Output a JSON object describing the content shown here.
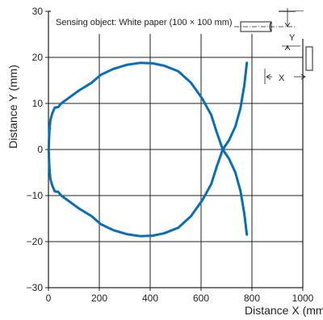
{
  "chart_data": {
    "type": "line",
    "xlabel": "Distance X (mm)",
    "ylabel": "Distance Y (mm)",
    "xlim": [
      0,
      1000
    ],
    "ylim": [
      -30,
      30
    ],
    "x_ticks": [
      0,
      200,
      400,
      600,
      800,
      1000
    ],
    "y_ticks": [
      -30,
      -20,
      -10,
      0,
      10,
      20,
      30
    ],
    "grid": true,
    "annotation": "Sensing object: White paper (100 × 100 mm)",
    "diagram_labels": {
      "y": "Y",
      "x": "X"
    },
    "colors": {
      "series": "#0a6eb4",
      "grid": "#231f20"
    },
    "series": [
      {
        "points": [
          [
            780,
            -18.5
          ],
          [
            770,
            -14
          ],
          [
            755,
            -9
          ],
          [
            735,
            -5
          ],
          [
            710,
            -2
          ],
          [
            685,
            0
          ],
          [
            660,
            4
          ],
          [
            640,
            7.5
          ],
          [
            605,
            11
          ],
          [
            560,
            14.5
          ],
          [
            510,
            17
          ],
          [
            455,
            18.2
          ],
          [
            410,
            18.7
          ],
          [
            360,
            18.8
          ],
          [
            310,
            18.4
          ],
          [
            255,
            17.5
          ],
          [
            205,
            16.2
          ],
          [
            170,
            14.5
          ],
          [
            120,
            12.8
          ],
          [
            75,
            11
          ],
          [
            50,
            10
          ],
          [
            38,
            9.2
          ],
          [
            25,
            9.1
          ],
          [
            15,
            7.8
          ],
          [
            8,
            6.5
          ],
          [
            5,
            5
          ],
          [
            3,
            3
          ],
          [
            1,
            0
          ],
          [
            3,
            -3
          ],
          [
            5,
            -5
          ],
          [
            8,
            -6.5
          ],
          [
            15,
            -7.8
          ],
          [
            25,
            -9.1
          ],
          [
            38,
            -9.2
          ],
          [
            50,
            -10
          ],
          [
            75,
            -11
          ],
          [
            120,
            -12.8
          ],
          [
            170,
            -14.5
          ],
          [
            205,
            -16.2
          ],
          [
            255,
            -17.5
          ],
          [
            310,
            -18.4
          ],
          [
            360,
            -18.8
          ],
          [
            410,
            -18.7
          ],
          [
            455,
            -18.2
          ],
          [
            510,
            -17
          ],
          [
            560,
            -14.5
          ],
          [
            605,
            -11
          ],
          [
            640,
            -7.5
          ],
          [
            660,
            -4
          ],
          [
            685,
            0
          ],
          [
            710,
            2
          ],
          [
            735,
            5
          ],
          [
            755,
            9
          ],
          [
            770,
            14
          ],
          [
            780,
            18.8
          ]
        ]
      }
    ]
  }
}
